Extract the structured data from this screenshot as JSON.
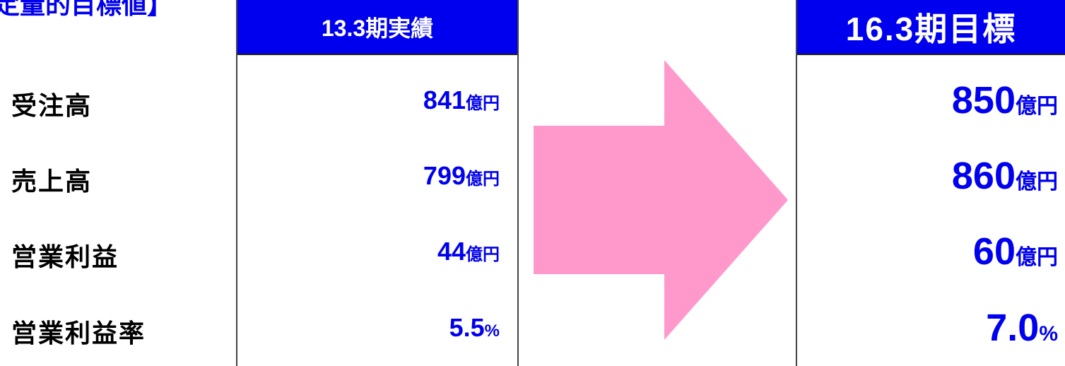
{
  "title": "定量的目標値】",
  "columns": {
    "actual": "13.3期実績",
    "target": "16.3期目標"
  },
  "rows": [
    {
      "label": "受注高",
      "actual": {
        "value": "841",
        "unit": "億円"
      },
      "target": {
        "value": "850",
        "unit": "億円"
      }
    },
    {
      "label": "売上高",
      "actual": {
        "value": "799",
        "unit": "億円"
      },
      "target": {
        "value": "860",
        "unit": "億円"
      }
    },
    {
      "label": "営業利益",
      "actual": {
        "value": "44",
        "unit": "億円"
      },
      "target": {
        "value": "60",
        "unit": "億円"
      }
    },
    {
      "label": "営業利益率",
      "actual": {
        "value": "5.5",
        "unit": "%"
      },
      "target": {
        "value": "7.0",
        "unit": "%"
      }
    }
  ]
}
